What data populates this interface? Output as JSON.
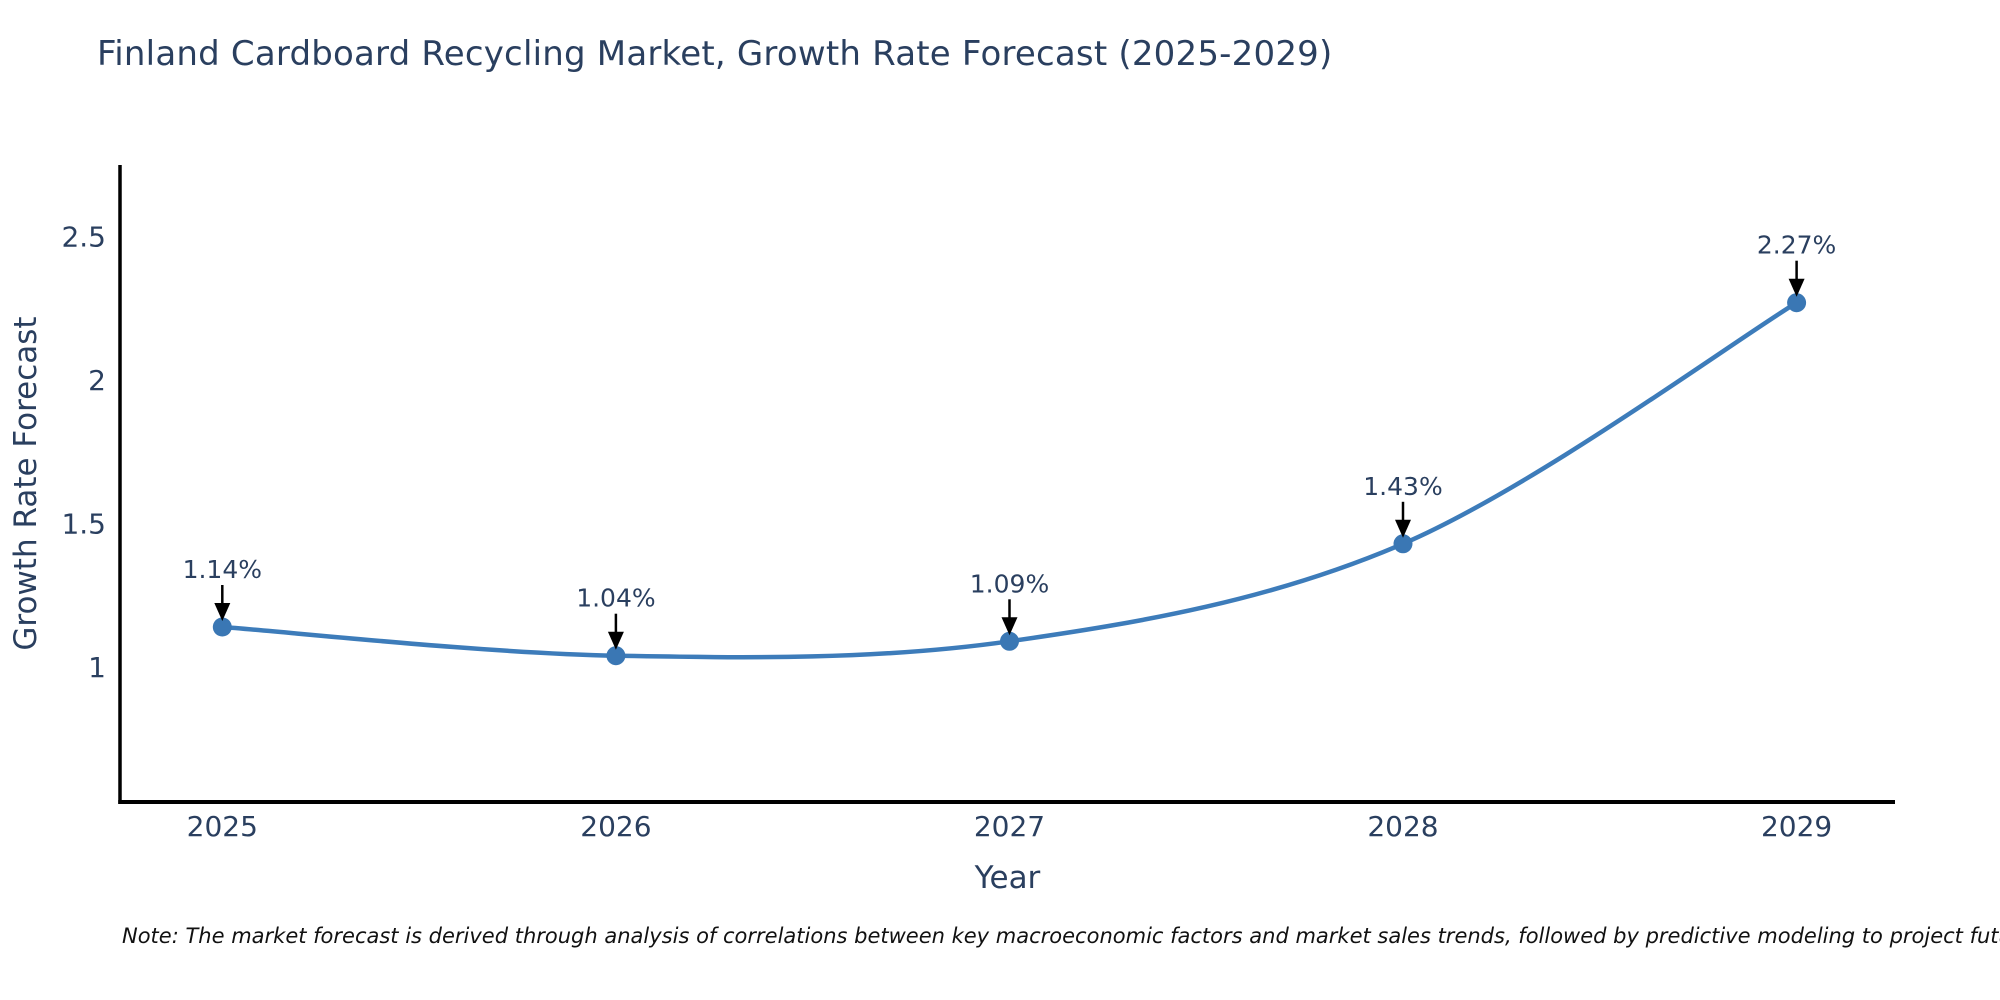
{
  "chart_data": {
    "type": "line",
    "title": "Finland Cardboard Recycling Market, Growth Rate Forecast (2025-2029)",
    "xlabel": "Year",
    "ylabel": "Growth Rate Forecast",
    "x": [
      2025,
      2026,
      2027,
      2028,
      2029
    ],
    "series": [
      {
        "name": "Growth Rate Forecast",
        "values": [
          1.14,
          1.04,
          1.09,
          1.43,
          2.27
        ]
      }
    ],
    "point_labels": [
      "1.14%",
      "1.04%",
      "1.09%",
      "1.43%",
      "2.27%"
    ],
    "xticks": [
      "2025",
      "2026",
      "2027",
      "2028",
      "2029"
    ],
    "xtick_values": [
      2025,
      2026,
      2027,
      2028,
      2029
    ],
    "yticks": [
      "1",
      "1.5",
      "2",
      "2.5"
    ],
    "ytick_values": [
      1,
      1.5,
      2,
      2.5
    ],
    "xlim": [
      2024.74,
      2029.25
    ],
    "ylim": [
      0.53,
      2.75
    ],
    "grid": false,
    "legend_position": "none",
    "line_shape": "spline",
    "colors": {
      "line": "#3d7cba",
      "marker": "#3a77b4",
      "text": "#2a3f5f",
      "axis": "#000000",
      "arrow": "#000000",
      "note_text": "#111111",
      "background": "#ffffff"
    }
  },
  "note": "Note: The market forecast is derived through analysis of correlations between key macroeconomic factors and market sales trends, followed by predictive modeling to project future sales"
}
